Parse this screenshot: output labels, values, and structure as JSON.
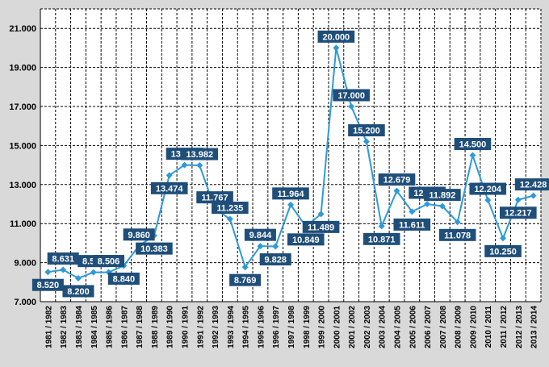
{
  "chart_data": {
    "type": "line",
    "title": "",
    "xlabel": "",
    "ylabel": "",
    "categories": [
      "1981 / 1982",
      "1982 / 1983",
      "1983 / 1984",
      "1984 / 1985",
      "1985 / 1986",
      "1986 / 1987",
      "1987 / 1988",
      "1988 / 1989",
      "1989 / 1990",
      "1990 / 1991",
      "1991 / 1992",
      "1992 / 1993",
      "1993 / 1994",
      "1994 / 1995",
      "1995 / 1996",
      "1996 / 1997",
      "1997 / 1998",
      "1998 / 1999",
      "1999 / 2000",
      "2000 / 2001",
      "2001 / 2002",
      "2002 / 2003",
      "2003 / 2004",
      "2004 / 2005",
      "2005 / 2006",
      "2006 / 2007",
      "2007 / 2008",
      "2008 / 2009",
      "2009 / 2010",
      "2010 / 2011",
      "2011 / 2012",
      "2012 / 2013",
      "2013 / 2014"
    ],
    "values": [
      8520,
      8631,
      8200,
      8502,
      8506,
      8840,
      9860,
      10383,
      13474,
      13999,
      13982,
      11767,
      11235,
      8769,
      9844,
      9828,
      11964,
      10849,
      11489,
      20000,
      17000,
      15200,
      10871,
      12679,
      11611,
      12000,
      11892,
      11078,
      14500,
      12204,
      10250,
      12217,
      12428
    ],
    "data_labels": [
      "8.520",
      "8.631",
      "8.200",
      "8.502",
      "8.506",
      "8.840",
      "9.860",
      "10.383",
      "13.474",
      "13.999",
      "13.982",
      "11.767",
      "11.235",
      "8.769",
      "9.844",
      "9.828",
      "11.964",
      "10.849",
      "11.489",
      "20.000",
      "17.000",
      "15.200",
      "10.871",
      "12.679",
      "11.611",
      "12.000",
      "11.892",
      "11.078",
      "14.500",
      "12.204",
      "10.250",
      "12.217",
      "12.428"
    ],
    "label_position": [
      "below",
      "above",
      "below",
      "above",
      "above",
      "below",
      "above",
      "below",
      "below",
      "above",
      "above",
      "above",
      "above",
      "below",
      "above",
      "below",
      "above",
      "below",
      "below",
      "above",
      "above",
      "above",
      "below",
      "above",
      "below",
      "above",
      "above",
      "below",
      "above",
      "above",
      "below",
      "below",
      "above"
    ],
    "ylim": [
      7000,
      22000
    ],
    "yticks": [
      7000,
      9000,
      11000,
      13000,
      15000,
      17000,
      19000,
      21000
    ],
    "ytick_labels": [
      "7.000",
      "9.000",
      "11.000",
      "13.000",
      "15.000",
      "17.000",
      "19.000",
      "21.000"
    ],
    "grid": true,
    "legend": "none",
    "colors": {
      "line": "#2e9ad6",
      "marker": "#2e9ad6",
      "label_bg": "#1f4e79",
      "plot_bg": "#ffffff",
      "frame_bg": "#d9d9d9",
      "grid": "#000000"
    }
  }
}
